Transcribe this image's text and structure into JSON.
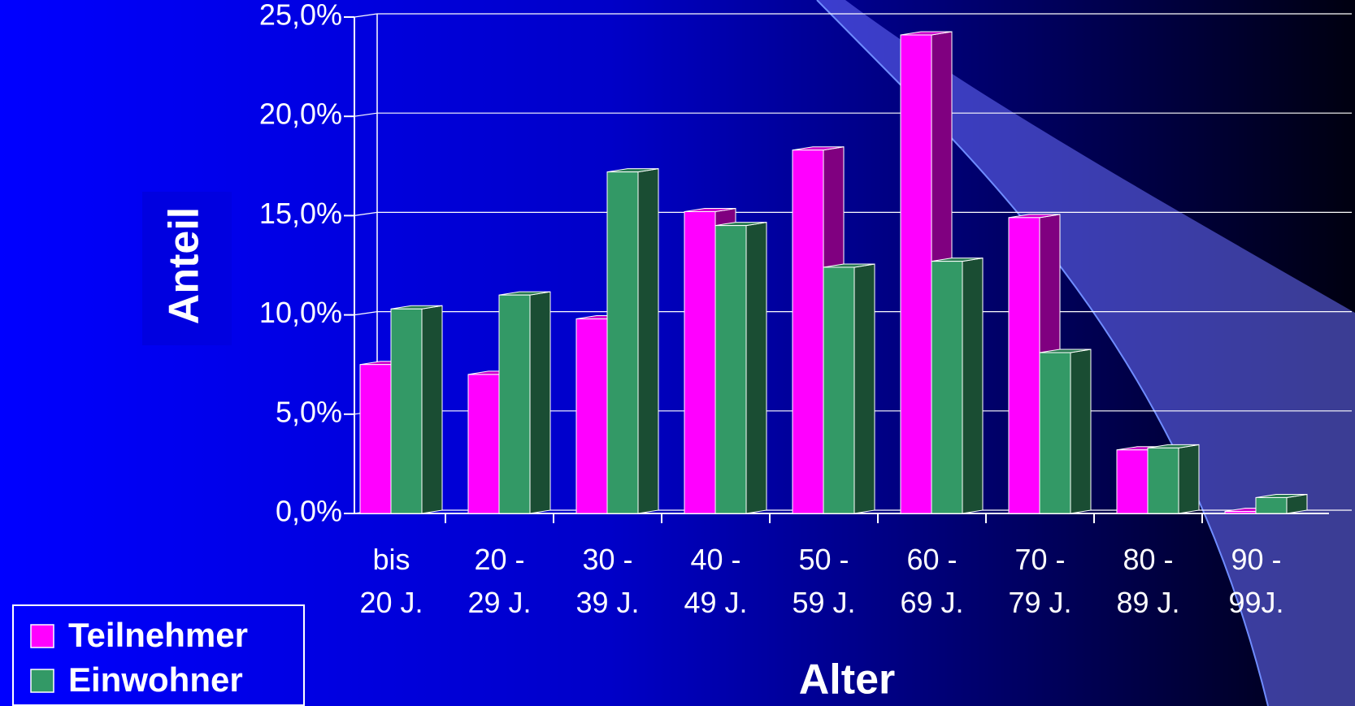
{
  "chart_data": {
    "type": "bar3d",
    "x_label": "Alter",
    "y_label": "Anteil",
    "categories": [
      "bis\n20 J.",
      "20 -\n29 J.",
      "30 -\n39 J.",
      "40 -\n49 J.",
      "50 -\n59 J.",
      "60 -\n69 J.",
      "70 -\n79 J.",
      "80 -\n89 J.",
      "90 -\n99J."
    ],
    "series": [
      {
        "name": "Teilnehmer",
        "color": "#ff00ff",
        "values": [
          7.5,
          7.0,
          9.8,
          15.2,
          18.3,
          24.1,
          14.9,
          3.2,
          0.1
        ]
      },
      {
        "name": "Einwohner",
        "color": "#339966",
        "values": [
          10.3,
          11.0,
          17.2,
          14.5,
          12.4,
          12.7,
          8.1,
          3.3,
          0.8
        ]
      }
    ],
    "ylim": [
      0,
      25
    ],
    "yticks": [
      {
        "value": 0,
        "label": "0,0%"
      },
      {
        "value": 5,
        "label": "5,0%"
      },
      {
        "value": 10,
        "label": "10,0%"
      },
      {
        "value": 15,
        "label": "15,0%"
      },
      {
        "value": 20,
        "label": "20,0%"
      },
      {
        "value": 25,
        "label": "25,0%"
      }
    ],
    "grid": true,
    "legend": "bottom-left"
  }
}
